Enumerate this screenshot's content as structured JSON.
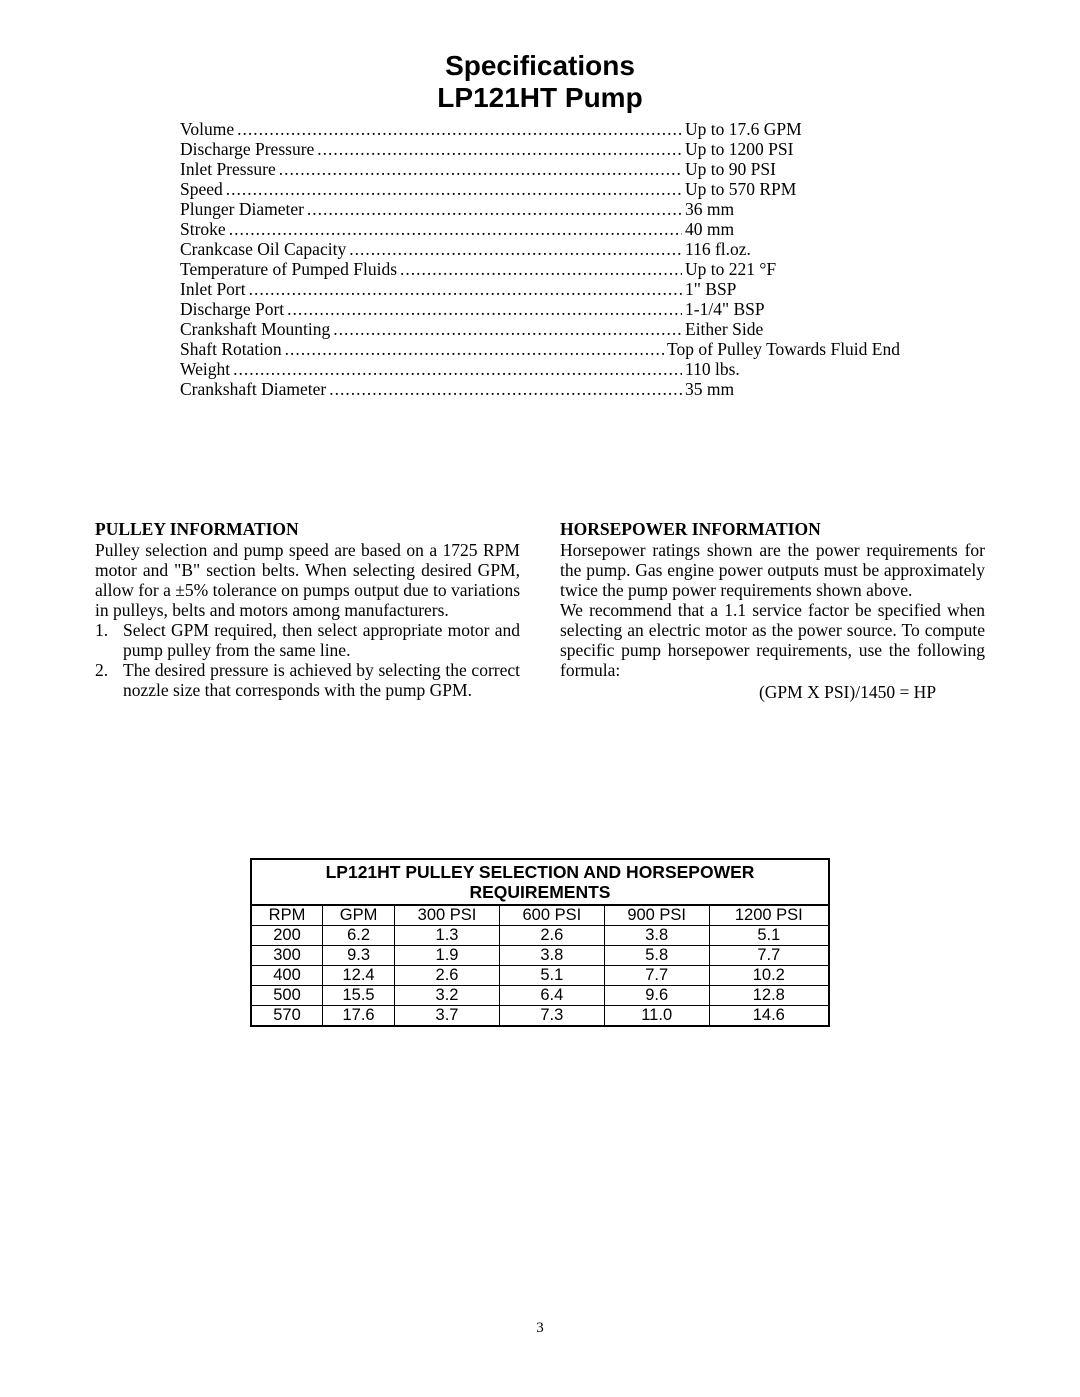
{
  "title": {
    "line1": "Specifications",
    "line2": "LP121HT Pump"
  },
  "specs": [
    {
      "label": "Volume",
      "value": "Up to 17.6 GPM"
    },
    {
      "label": "Discharge Pressure",
      "value": "Up to 1200 PSI"
    },
    {
      "label": "Inlet Pressure",
      "value": "Up to 90 PSI"
    },
    {
      "label": "Speed",
      "value": "Up to 570 RPM"
    },
    {
      "label": "Plunger Diameter",
      "value": "36 mm"
    },
    {
      "label": "Stroke",
      "value": "40 mm"
    },
    {
      "label": "Crankcase Oil Capacity",
      "value": "116 fl.oz."
    },
    {
      "label": "Temperature of Pumped Fluids",
      "value": "Up to 221 °F"
    },
    {
      "label": "Inlet Port",
      "value": "1\" BSP"
    },
    {
      "label": "Discharge Port",
      "value": "1-1/4\" BSP"
    },
    {
      "label": "Crankshaft Mounting",
      "value": "Either Side"
    },
    {
      "label": "Shaft Rotation",
      "value": "Top of Pulley Towards Fluid End"
    },
    {
      "label": "Weight",
      "value": "110 lbs."
    },
    {
      "label": "Crankshaft Diameter",
      "value": "35 mm"
    }
  ],
  "pulley": {
    "heading": "PULLEY  INFORMATION",
    "intro": "Pulley selection and pump speed are based on a 1725 RPM motor and \"B\" section belts.  When selecting desired GPM, allow for a ±5% tolerance on pumps output due to variations in pulleys, belts and motors among manufacturers.",
    "item1": "Select GPM required, then select appropriate motor and pump pulley from the same line.",
    "item2": "The desired pressure is achieved by selecting the correct nozzle size that corresponds with the pump GPM."
  },
  "hp": {
    "heading": "HORSEPOWER  INFORMATION",
    "p1": "Horsepower ratings shown are the power require­ments for the pump.  Gas engine power outputs must be approximately twice the pump power requirements shown above.",
    "p2": "We recommend that a 1.1 service factor be specified when selecting an electric motor as the power source.  To compute specific pump horsepower requirements, use the following formula:",
    "formula": "(GPM X PSI)/1450 = HP"
  },
  "table": {
    "title1": "LP121HT PULLEY SELECTION AND HORSEPOWER",
    "title2": "REQUIREMENTS",
    "columns": [
      "RPM",
      "GPM",
      "300 PSI",
      "600 PSI",
      "900 PSI",
      "1200 PSI"
    ],
    "rows": [
      [
        "200",
        "6.2",
        "1.3",
        "2.6",
        "3.8",
        "5.1"
      ],
      [
        "300",
        "9.3",
        "1.9",
        "3.8",
        "5.8",
        "7.7"
      ],
      [
        "400",
        "12.4",
        "2.6",
        "5.1",
        "7.7",
        "10.2"
      ],
      [
        "500",
        "15.5",
        "3.2",
        "6.4",
        "9.6",
        "12.8"
      ],
      [
        "570",
        "17.6",
        "3.7",
        "7.3",
        "11.0",
        "14.6"
      ]
    ]
  },
  "page_number": "3"
}
